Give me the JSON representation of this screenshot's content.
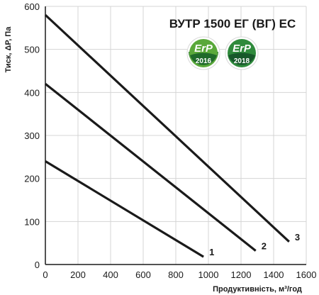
{
  "chart_data": {
    "type": "line",
    "title": "ВУТР 1500 ЕГ (ВГ) ЕС",
    "xlabel": "Продуктивність, м³/год",
    "ylabel": "Тиск, ΔР, Па",
    "xlim": [
      0,
      1600
    ],
    "ylim": [
      0,
      600
    ],
    "x_ticks": [
      "0",
      "200",
      "400",
      "600",
      "800",
      "1000",
      "1200",
      "1400",
      "1600"
    ],
    "y_ticks": [
      "0",
      "100",
      "200",
      "300",
      "400",
      "500",
      "600"
    ],
    "grid": true,
    "series": [
      {
        "name": "1",
        "x": [
          0,
          970
        ],
        "y": [
          240,
          18
        ],
        "color": "#1a1a1a"
      },
      {
        "name": "2",
        "x": [
          0,
          1290
        ],
        "y": [
          420,
          32
        ],
        "color": "#1a1a1a"
      },
      {
        "name": "3",
        "x": [
          0,
          1495
        ],
        "y": [
          580,
          53
        ],
        "color": "#1a1a1a"
      }
    ],
    "badges": [
      {
        "top": "ErP",
        "year": "2016",
        "color": "#5aa83a"
      },
      {
        "top": "ErP",
        "year": "2018",
        "color": "#2f8a3c"
      }
    ]
  }
}
